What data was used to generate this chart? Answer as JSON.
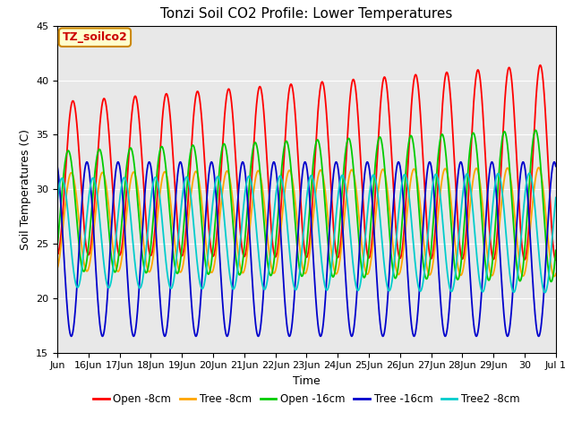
{
  "title": "Tonzi Soil CO2 Profile: Lower Temperatures",
  "xlabel": "Time",
  "ylabel": "Soil Temperatures (C)",
  "ylim": [
    15,
    45
  ],
  "annotation_text": "TZ_soilco2",
  "annotation_bg": "#ffffcc",
  "annotation_border": "#cc8800",
  "plot_bg": "#e8e8e8",
  "series": [
    {
      "label": "Open -8cm",
      "color": "#ff0000"
    },
    {
      "label": "Tree -8cm",
      "color": "#ffa500"
    },
    {
      "label": "Open -16cm",
      "color": "#00cc00"
    },
    {
      "label": "Tree -16cm",
      "color": "#0000cc"
    },
    {
      "label": "Tree2 -8cm",
      "color": "#00cccc"
    }
  ],
  "tick_labels": [
    "Jun",
    "16Jun",
    "17Jun",
    "18Jun",
    "19Jun",
    "20Jun",
    "21Jun",
    "22Jun",
    "23Jun",
    "24Jun",
    "25Jun",
    "26Jun",
    "27Jun",
    "28Jun",
    "29Jun",
    "30",
    "Jul 1"
  ],
  "tick_positions": [
    0,
    1,
    2,
    3,
    4,
    5,
    6,
    7,
    8,
    9,
    10,
    11,
    12,
    13,
    14,
    15,
    16
  ],
  "title_fontsize": 11,
  "axis_label_fontsize": 9,
  "tick_fontsize": 8,
  "legend_fontsize": 8.5,
  "linewidth": 1.3
}
